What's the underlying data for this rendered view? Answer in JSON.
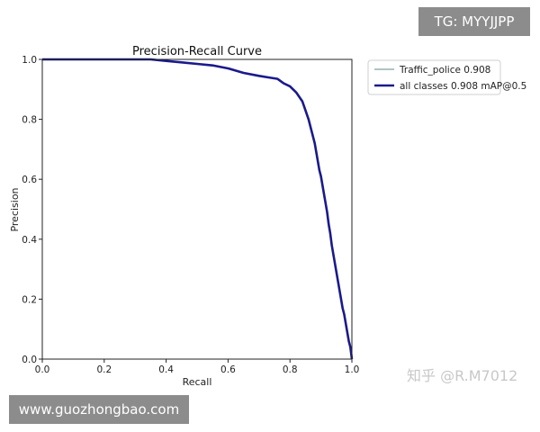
{
  "watermarks": {
    "top_right": "TG: MYYJJPP",
    "bottom_left": "www.guozhongbao.com",
    "zhihu": "知乎 @R.M7012"
  },
  "chart_data": {
    "type": "line",
    "title": "Precision-Recall Curve",
    "xlabel": "Recall",
    "ylabel": "Precision",
    "xlim": [
      0.0,
      1.0
    ],
    "ylim": [
      0.0,
      1.0
    ],
    "x_ticks": [
      "0.0",
      "0.2",
      "0.4",
      "0.6",
      "0.8",
      "1.0"
    ],
    "y_ticks": [
      "0.0",
      "0.2",
      "0.4",
      "0.6",
      "0.8",
      "1.0"
    ],
    "grid": false,
    "legend_position": "outside-top-right",
    "series": [
      {
        "name": "Traffic_police 0.908",
        "color": "#7f9fa0",
        "width": "thin",
        "x": [
          0.0,
          0.05,
          0.1,
          0.2,
          0.3,
          0.35,
          0.4,
          0.45,
          0.5,
          0.55,
          0.6,
          0.65,
          0.7,
          0.73,
          0.76,
          0.78,
          0.8,
          0.82,
          0.84,
          0.85,
          0.86,
          0.87,
          0.88,
          0.885,
          0.89,
          0.895,
          0.9,
          0.905,
          0.91,
          0.915,
          0.92,
          0.925,
          0.93,
          0.935,
          0.94,
          0.945,
          0.95,
          0.955,
          0.96,
          0.965,
          0.97,
          0.975,
          0.98,
          0.985,
          0.99,
          0.995,
          1.0
        ],
        "y": [
          1.0,
          1.0,
          1.0,
          1.0,
          1.0,
          1.0,
          0.995,
          0.99,
          0.985,
          0.98,
          0.97,
          0.955,
          0.945,
          0.94,
          0.935,
          0.92,
          0.91,
          0.89,
          0.86,
          0.83,
          0.8,
          0.76,
          0.72,
          0.69,
          0.66,
          0.63,
          0.61,
          0.58,
          0.55,
          0.52,
          0.49,
          0.45,
          0.42,
          0.38,
          0.35,
          0.32,
          0.29,
          0.26,
          0.23,
          0.2,
          0.17,
          0.15,
          0.12,
          0.09,
          0.06,
          0.04,
          0.0
        ]
      },
      {
        "name": "all classes 0.908 mAP@0.5",
        "color": "#1a1a8c",
        "width": "thick",
        "x": [
          0.0,
          0.05,
          0.1,
          0.2,
          0.3,
          0.35,
          0.4,
          0.45,
          0.5,
          0.55,
          0.6,
          0.65,
          0.7,
          0.73,
          0.76,
          0.78,
          0.8,
          0.82,
          0.84,
          0.85,
          0.86,
          0.87,
          0.88,
          0.885,
          0.89,
          0.895,
          0.9,
          0.905,
          0.91,
          0.915,
          0.92,
          0.925,
          0.93,
          0.935,
          0.94,
          0.945,
          0.95,
          0.955,
          0.96,
          0.965,
          0.97,
          0.975,
          0.98,
          0.985,
          0.99,
          0.995,
          1.0
        ],
        "y": [
          1.0,
          1.0,
          1.0,
          1.0,
          1.0,
          1.0,
          0.995,
          0.99,
          0.985,
          0.98,
          0.97,
          0.955,
          0.945,
          0.94,
          0.935,
          0.92,
          0.91,
          0.89,
          0.86,
          0.83,
          0.8,
          0.76,
          0.72,
          0.69,
          0.66,
          0.63,
          0.61,
          0.58,
          0.55,
          0.52,
          0.49,
          0.45,
          0.42,
          0.38,
          0.35,
          0.32,
          0.29,
          0.26,
          0.23,
          0.2,
          0.17,
          0.15,
          0.12,
          0.09,
          0.06,
          0.04,
          0.0
        ]
      }
    ]
  }
}
